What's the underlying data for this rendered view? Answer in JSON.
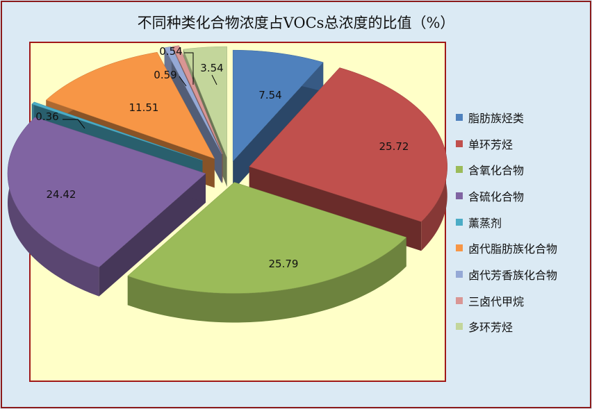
{
  "chart_data": {
    "type": "pie",
    "style": "3d-exploded",
    "title": "不同种类化合物浓度占VOCs总浓度的比值（%）",
    "legend_position": "right",
    "slices": [
      {
        "label": "脂肪族烃类",
        "value": 7.54,
        "display": "7.54",
        "color": "#4f81bd"
      },
      {
        "label": "单环芳烃",
        "value": 25.72,
        "display": "25.72",
        "color": "#c0504d"
      },
      {
        "label": "含氧化合物",
        "value": 25.79,
        "display": "25.79",
        "color": "#9bbb59"
      },
      {
        "label": "含硫化合物",
        "value": 24.42,
        "display": "24.42",
        "color": "#8064a2"
      },
      {
        "label": "薰蒸剂",
        "value": 0.36,
        "display": "0.36",
        "color": "#4bacc6"
      },
      {
        "label": "卤代脂肪族化合物",
        "value": 11.51,
        "display": "11.51",
        "color": "#f79646"
      },
      {
        "label": "卤代芳香族化合物",
        "value": 0.59,
        "display": "0.59",
        "color": "#95a9d6"
      },
      {
        "label": "三卤代甲烷",
        "value": 0.54,
        "display": "0.54",
        "color": "#d99694"
      },
      {
        "label": "多环芳烃",
        "value": 3.54,
        "display": "3.54",
        "color": "#c3d69b"
      }
    ]
  }
}
